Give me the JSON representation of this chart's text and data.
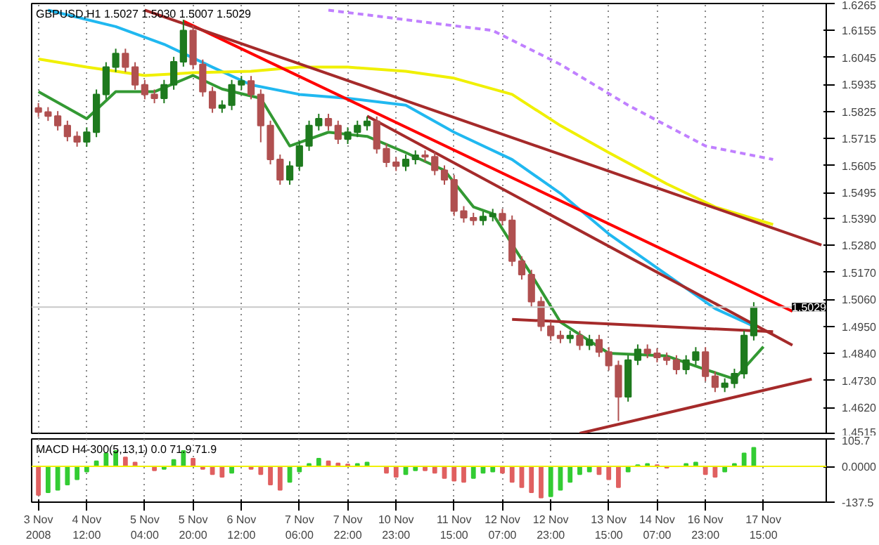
{
  "chart_data": [
    {
      "type": "candlestick",
      "title": "GBPUSD,H1 1.5027 1.5030 1.5007 1.5029",
      "categories": [
        "3 Nov 2008",
        null,
        null,
        null,
        null,
        "4 Nov 12:00",
        null,
        null,
        null,
        null,
        null,
        "5 Nov 04:00",
        null,
        null,
        null,
        null,
        "5 Nov 20:00",
        null,
        null,
        null,
        null,
        "6 Nov 12:00",
        null,
        null,
        null,
        null,
        null,
        "7 Nov 06:00",
        null,
        null,
        null,
        null,
        "7 Nov 22:00",
        null,
        null,
        null,
        null,
        "10 Nov 23:00",
        null,
        null,
        null,
        null,
        null,
        "11 Nov 15:00",
        null,
        null,
        null,
        null,
        "12 Nov 07:00",
        null,
        null,
        null,
        null,
        "12 Nov 23:00",
        null,
        null,
        null,
        null,
        null,
        "13 Nov 15:00",
        null,
        null,
        null,
        null,
        "14 Nov 07:00",
        null,
        null,
        null,
        null,
        "16 Nov 23:00",
        null,
        null,
        null,
        null,
        null,
        "17 Nov 15:00",
        null,
        null,
        null,
        null,
        null,
        null
      ],
      "ohlc": [
        [
          1.584,
          1.586,
          1.5803,
          1.5823
        ],
        [
          1.5823,
          1.5843,
          1.5787,
          1.5807
        ],
        [
          1.5807,
          1.5827,
          1.5748,
          1.5768
        ],
        [
          1.5768,
          1.5788,
          1.5704,
          1.5724
        ],
        [
          1.5724,
          1.5744,
          1.5682,
          1.5702
        ],
        [
          1.5702,
          1.5761,
          1.5682,
          1.5741
        ],
        [
          1.5741,
          1.5915,
          1.5721,
          1.5895
        ],
        [
          1.5895,
          1.6026,
          1.5875,
          1.6006
        ],
        [
          1.6006,
          1.6081,
          1.5986,
          1.6061
        ],
        [
          1.6061,
          1.6081,
          1.5986,
          1.6006
        ],
        [
          1.6006,
          1.6026,
          1.5914,
          1.5934
        ],
        [
          1.5934,
          1.5954,
          1.5875,
          1.5895
        ],
        [
          1.5895,
          1.5915,
          1.5859,
          1.5879
        ],
        [
          1.5879,
          1.5954,
          1.5859,
          1.5934
        ],
        [
          1.5934,
          1.6048,
          1.5914,
          1.6028
        ],
        [
          1.6028,
          1.6199,
          1.6008,
          1.6155
        ],
        [
          1.6155,
          1.6175,
          1.5997,
          1.6017
        ],
        [
          1.6017,
          1.6037,
          1.5886,
          1.5906
        ],
        [
          1.5906,
          1.5926,
          1.582,
          1.584
        ],
        [
          1.584,
          1.5871,
          1.582,
          1.5851
        ],
        [
          1.5851,
          1.5954,
          1.5831,
          1.5934
        ],
        [
          1.5934,
          1.597,
          1.5914,
          1.595
        ],
        [
          1.595,
          1.597,
          1.5875,
          1.5895
        ],
        [
          1.5895,
          1.5915,
          1.57,
          1.5768
        ],
        [
          1.5768,
          1.5788,
          1.561,
          1.563
        ],
        [
          1.563,
          1.565,
          1.5527,
          1.5547
        ],
        [
          1.5547,
          1.5623,
          1.5527,
          1.5603
        ],
        [
          1.5603,
          1.5705,
          1.5583,
          1.5685
        ],
        [
          1.5685,
          1.5788,
          1.5665,
          1.5768
        ],
        [
          1.5768,
          1.5816,
          1.5748,
          1.5796
        ],
        [
          1.5796,
          1.5816,
          1.5748,
          1.5768
        ],
        [
          1.5768,
          1.5788,
          1.5693,
          1.5713
        ],
        [
          1.5713,
          1.5761,
          1.5693,
          1.5741
        ],
        [
          1.5741,
          1.5788,
          1.5721,
          1.5768
        ],
        [
          1.5768,
          1.5805,
          1.5748,
          1.5785
        ],
        [
          1.5785,
          1.5805,
          1.5654,
          1.5674
        ],
        [
          1.5674,
          1.5694,
          1.5599,
          1.5619
        ],
        [
          1.5619,
          1.5639,
          1.5583,
          1.5603
        ],
        [
          1.5603,
          1.565,
          1.5583,
          1.563
        ],
        [
          1.563,
          1.5667,
          1.561,
          1.5647
        ],
        [
          1.5647,
          1.5667,
          1.5621,
          1.5641
        ],
        [
          1.5641,
          1.5661,
          1.5566,
          1.5586
        ],
        [
          1.5586,
          1.5606,
          1.5527,
          1.5547
        ],
        [
          1.5547,
          1.5567,
          1.54,
          1.542
        ],
        [
          1.542,
          1.544,
          1.5373,
          1.5393
        ],
        [
          1.5393,
          1.5413,
          1.5362,
          1.5382
        ],
        [
          1.5382,
          1.5418,
          1.5362,
          1.5398
        ],
        [
          1.5398,
          1.5429,
          1.5378,
          1.5409
        ],
        [
          1.5409,
          1.5429,
          1.5362,
          1.5382
        ],
        [
          1.5382,
          1.5402,
          1.5196,
          1.5216
        ],
        [
          1.5216,
          1.5236,
          1.5141,
          1.5161
        ],
        [
          1.5161,
          1.5181,
          1.5031,
          1.5051
        ],
        [
          1.5051,
          1.5071,
          1.4931,
          1.4951
        ],
        [
          1.4951,
          1.4971,
          1.4893,
          1.4913
        ],
        [
          1.4913,
          1.4933,
          1.4882,
          1.4902
        ],
        [
          1.4902,
          1.4933,
          1.4882,
          1.4913
        ],
        [
          1.4913,
          1.4933,
          1.4854,
          1.4874
        ],
        [
          1.4874,
          1.4916,
          1.4854,
          1.4896
        ],
        [
          1.4896,
          1.4916,
          1.4826,
          1.4846
        ],
        [
          1.4846,
          1.4866,
          1.4771,
          1.4791
        ],
        [
          1.4791,
          1.4811,
          1.4565,
          1.4664
        ],
        [
          1.4664,
          1.4833,
          1.4644,
          1.4813
        ],
        [
          1.4813,
          1.4877,
          1.4793,
          1.4857
        ],
        [
          1.4857,
          1.4877,
          1.4821,
          1.4841
        ],
        [
          1.4841,
          1.4861,
          1.4804,
          1.4824
        ],
        [
          1.4824,
          1.4844,
          1.4793,
          1.4813
        ],
        [
          1.4813,
          1.4833,
          1.4755,
          1.4775
        ],
        [
          1.4775,
          1.4833,
          1.4755,
          1.4813
        ],
        [
          1.4813,
          1.4866,
          1.4793,
          1.4846
        ],
        [
          1.4846,
          1.4866,
          1.4727,
          1.4747
        ],
        [
          1.4747,
          1.4767,
          1.4683,
          1.4703
        ],
        [
          1.4703,
          1.4739,
          1.4683,
          1.4719
        ],
        [
          1.4719,
          1.4778,
          1.4699,
          1.4758
        ],
        [
          1.4758,
          1.4933,
          1.4738,
          1.4913
        ],
        [
          1.4913,
          1.5049,
          1.4893,
          1.5029
        ],
        null,
        null,
        null,
        null,
        null,
        null,
        null
      ],
      "colors": [
        "#b05050",
        "#b05050",
        "#b05050",
        "#b05050",
        "#b05050",
        "#1e7a1e",
        "#1e7a1e",
        "#1e7a1e",
        "#1e7a1e",
        "#b05050",
        "#b05050",
        "#b05050",
        "#b05050",
        "#1e7a1e",
        "#1e7a1e",
        "#1e7a1e",
        "#b05050",
        "#b05050",
        "#b05050",
        "#1e7a1e",
        "#1e7a1e",
        "#1e7a1e",
        "#b05050",
        "#b05050",
        "#b05050",
        "#b05050",
        "#1e7a1e",
        "#1e7a1e",
        "#1e7a1e",
        "#1e7a1e",
        "#b05050",
        "#b05050",
        "#1e7a1e",
        "#1e7a1e",
        "#1e7a1e",
        "#b05050",
        "#b05050",
        "#b05050",
        "#1e7a1e",
        "#1e7a1e",
        "#b05050",
        "#b05050",
        "#b05050",
        "#b05050",
        "#b05050",
        "#b05050",
        "#1e7a1e",
        "#1e7a1e",
        "#b05050",
        "#b05050",
        "#b05050",
        "#b05050",
        "#b05050",
        "#b05050",
        "#b05050",
        "#1e7a1e",
        "#b05050",
        "#1e7a1e",
        "#b05050",
        "#b05050",
        "#b05050",
        "#1e7a1e",
        "#1e7a1e",
        "#b05050",
        "#b05050",
        "#b05050",
        "#b05050",
        "#1e7a1e",
        "#1e7a1e",
        "#b05050",
        "#b05050",
        "#1e7a1e",
        "#1e7a1e",
        "#1e7a1e",
        "#1e7a1e",
        null,
        null,
        null,
        null,
        null,
        null,
        null
      ],
      "series": [
        {
          "type": "line",
          "color": "#20b8f0",
          "values": [
            null,
            1.6238,
            null,
            null,
            null,
            null,
            null,
            null,
            1.6171,
            null,
            null,
            null,
            null,
            1.6099,
            null,
            null,
            null,
            null,
            1.6006,
            null,
            null,
            null,
            1.5934,
            null,
            null,
            null,
            null,
            1.5895,
            null,
            null,
            null,
            null,
            1.5879,
            null,
            null,
            null,
            null,
            null,
            1.5851,
            null,
            null,
            null,
            null,
            1.5741,
            null,
            null,
            null,
            null,
            null,
            1.563,
            null,
            null,
            null,
            null,
            1.5492,
            null,
            null,
            null,
            null,
            1.5327,
            null,
            null,
            null,
            null,
            null,
            1.5161,
            null,
            null,
            null,
            null,
            1.5023,
            null,
            null,
            null,
            1.4951,
            null,
            null,
            null,
            null,
            null,
            null,
            null
          ]
        },
        {
          "type": "line",
          "color": "#f0f000",
          "values": [
            1.6039,
            null,
            null,
            null,
            null,
            1.6006,
            null,
            null,
            null,
            null,
            null,
            1.5972,
            null,
            null,
            null,
            null,
            1.5983,
            null,
            null,
            null,
            null,
            null,
            1.5989,
            null,
            null,
            null,
            null,
            1.6006,
            null,
            null,
            null,
            null,
            1.6006,
            null,
            null,
            null,
            null,
            null,
            1.5989,
            null,
            null,
            null,
            null,
            1.5961,
            null,
            null,
            null,
            null,
            null,
            1.5895,
            null,
            null,
            null,
            null,
            1.5768,
            null,
            null,
            null,
            null,
            1.5658,
            null,
            null,
            null,
            null,
            null,
            1.5531,
            null,
            null,
            null,
            null,
            1.5437,
            null,
            null,
            null,
            null,
            null,
            1.5365,
            null,
            null,
            null,
            null,
            null
          ]
        },
        {
          "type": "line",
          "color": "#c080ff",
          "line_style": "dashed",
          "values": [
            null,
            null,
            null,
            null,
            null,
            null,
            null,
            null,
            null,
            null,
            null,
            null,
            null,
            null,
            null,
            null,
            null,
            null,
            null,
            null,
            null,
            null,
            null,
            null,
            null,
            null,
            null,
            null,
            null,
            null,
            1.6238,
            null,
            null,
            null,
            null,
            null,
            null,
            null,
            null,
            null,
            null,
            null,
            null,
            null,
            null,
            null,
            null,
            1.6155,
            null,
            null,
            null,
            null,
            null,
            null,
            1.6017,
            null,
            null,
            null,
            null,
            null,
            null,
            1.5851,
            null,
            null,
            null,
            null,
            null,
            null,
            null,
            1.5685,
            null,
            null,
            null,
            null,
            null,
            null,
            1.563,
            null,
            null,
            null,
            null,
            null
          ]
        },
        {
          "type": "line",
          "color": "#339933",
          "values": [
            1.5906,
            null,
            null,
            null,
            null,
            1.5796,
            null,
            null,
            1.5906,
            null,
            null,
            null,
            1.5906,
            null,
            null,
            null,
            1.5972,
            null,
            null,
            1.5917,
            null,
            null,
            null,
            1.5879,
            null,
            null,
            1.5685,
            null,
            null,
            null,
            1.5741,
            null,
            null,
            null,
            1.5724,
            null,
            null,
            null,
            1.5658,
            null,
            null,
            null,
            1.5586,
            null,
            null,
            1.5437,
            null,
            1.5409,
            null,
            null,
            null,
            1.5161,
            null,
            null,
            1.4968,
            null,
            null,
            null,
            null,
            1.4841,
            null,
            null,
            null,
            null,
            null,
            1.483,
            null,
            null,
            null,
            1.4775,
            null,
            null,
            1.4736,
            null,
            null,
            1.4868,
            null,
            null,
            null,
            null,
            null,
            null
          ]
        },
        {
          "type": "line",
          "color": "#ff0000",
          "values": [
            null,
            null,
            null,
            null,
            null,
            null,
            null,
            null,
            null,
            null,
            null,
            null,
            null,
            null,
            null,
            1.6193,
            null,
            null,
            null,
            null,
            null,
            null,
            null,
            null,
            null,
            null,
            null,
            null,
            null,
            null,
            null,
            null,
            null,
            null,
            null,
            null,
            null,
            null,
            null,
            null,
            null,
            null,
            null,
            null,
            null,
            null,
            null,
            null,
            null,
            null,
            null,
            null,
            null,
            null,
            null,
            null,
            null,
            null,
            null,
            null,
            null,
            null,
            null,
            null,
            null,
            null,
            null,
            null,
            null,
            null,
            null,
            null,
            null,
            null,
            null,
            null,
            null,
            null,
            1.5012,
            null,
            null,
            null
          ]
        },
        {
          "type": "line",
          "color": "#a52a2a",
          "values": [
            null,
            null,
            null,
            null,
            null,
            null,
            null,
            null,
            null,
            null,
            null,
            1.6238,
            null,
            null,
            null,
            null,
            null,
            null,
            null,
            null,
            null,
            null,
            null,
            null,
            null,
            null,
            null,
            null,
            null,
            null,
            null,
            null,
            null,
            null,
            null,
            null,
            null,
            null,
            null,
            null,
            null,
            null,
            null,
            null,
            null,
            null,
            null,
            null,
            null,
            null,
            null,
            null,
            null,
            null,
            null,
            null,
            null,
            null,
            null,
            null,
            null,
            null,
            null,
            null,
            null,
            null,
            null,
            null,
            null,
            null,
            null,
            null,
            null,
            null,
            null,
            null,
            null,
            null,
            null,
            null,
            null,
            1.5282
          ]
        },
        {
          "type": "line",
          "color": "#a52a2a",
          "values": [
            null,
            null,
            null,
            null,
            null,
            null,
            null,
            null,
            null,
            null,
            null,
            null,
            null,
            null,
            null,
            null,
            null,
            null,
            null,
            null,
            null,
            null,
            null,
            null,
            null,
            null,
            null,
            null,
            null,
            null,
            null,
            null,
            null,
            null,
            1.5807,
            null,
            null,
            null,
            null,
            null,
            null,
            null,
            null,
            null,
            null,
            null,
            null,
            null,
            null,
            null,
            null,
            null,
            null,
            null,
            null,
            null,
            null,
            null,
            null,
            null,
            null,
            null,
            null,
            null,
            null,
            null,
            null,
            null,
            null,
            null,
            null,
            null,
            null,
            null,
            null,
            null,
            null,
            null,
            1.4874,
            null,
            null,
            null
          ]
        },
        {
          "type": "line",
          "color": "#a52a2a",
          "values": [
            null,
            null,
            null,
            null,
            null,
            null,
            null,
            null,
            null,
            null,
            null,
            null,
            null,
            null,
            null,
            null,
            null,
            null,
            null,
            null,
            null,
            null,
            null,
            null,
            null,
            null,
            null,
            null,
            null,
            null,
            null,
            null,
            null,
            null,
            null,
            null,
            null,
            null,
            null,
            null,
            null,
            null,
            null,
            null,
            null,
            null,
            null,
            null,
            null,
            1.4979,
            null,
            null,
            null,
            null,
            null,
            null,
            null,
            null,
            null,
            null,
            null,
            null,
            null,
            null,
            null,
            null,
            null,
            null,
            null,
            null,
            null,
            null,
            null,
            null,
            null,
            null,
            1.4929,
            null,
            null,
            null,
            null,
            null
          ]
        },
        {
          "type": "line",
          "color": "#a52a2a",
          "values": [
            null,
            null,
            null,
            null,
            null,
            null,
            null,
            null,
            null,
            null,
            null,
            null,
            null,
            null,
            null,
            null,
            null,
            null,
            null,
            null,
            null,
            null,
            null,
            null,
            null,
            null,
            null,
            null,
            null,
            null,
            null,
            null,
            null,
            null,
            null,
            null,
            null,
            null,
            null,
            null,
            null,
            null,
            null,
            null,
            null,
            null,
            null,
            null,
            null,
            null,
            null,
            null,
            null,
            null,
            null,
            null,
            1.4515,
            null,
            null,
            null,
            null,
            null,
            null,
            null,
            null,
            null,
            null,
            null,
            null,
            null,
            null,
            null,
            null,
            null,
            null,
            null,
            null,
            null,
            null,
            null,
            1.4736,
            null
          ]
        }
      ],
      "ref_lines": [
        {
          "axis": "y",
          "value": 1.5029,
          "label": "1.5029",
          "color": "#c8c8c8"
        }
      ],
      "ylim": [
        1.4515,
        1.6265
      ],
      "yticks": [
        1.6265,
        1.6155,
        1.6045,
        1.5935,
        1.5825,
        1.5715,
        1.5605,
        1.5495,
        {
          "value": 1.539,
          "label": "1.5390"
        },
        {
          "value": 1.528,
          "label": "1.5280"
        },
        {
          "value": 1.517,
          "label": "1.5170"
        },
        {
          "value": 1.506,
          "label": "1.5060"
        },
        {
          "value": 1.495,
          "label": "1.4950"
        },
        {
          "value": 1.484,
          "label": "1.4840"
        },
        {
          "value": 1.473,
          "label": "1.4730"
        },
        {
          "value": 1.462,
          "label": "1.4620"
        },
        1.4515
      ],
      "grid": "x",
      "tick_labels": "y"
    },
    {
      "type": "bar",
      "title": "MACD H4-300(5,13,1) 0.0 71.9 71.9",
      "categories": [
        "3 Nov 2008",
        null,
        null,
        null,
        null,
        "4 Nov 12:00",
        null,
        null,
        null,
        null,
        null,
        "5 Nov 04:00",
        null,
        null,
        null,
        null,
        "5 Nov 20:00",
        null,
        null,
        null,
        null,
        "6 Nov 12:00",
        null,
        null,
        null,
        null,
        null,
        "7 Nov 06:00",
        null,
        null,
        null,
        null,
        "7 Nov 22:00",
        null,
        null,
        null,
        null,
        "10 Nov 23:00",
        null,
        null,
        null,
        null,
        null,
        "11 Nov 15:00",
        null,
        null,
        null,
        null,
        "12 Nov 07:00",
        null,
        null,
        null,
        null,
        "12 Nov 23:00",
        null,
        null,
        null,
        null,
        null,
        "13 Nov 15:00",
        null,
        null,
        null,
        null,
        "14 Nov 07:00",
        null,
        null,
        null,
        null,
        "16 Nov 23:00",
        null,
        null,
        null,
        null,
        null,
        "17 Nov 15:00",
        null,
        null,
        null,
        null,
        null,
        null
      ],
      "values": [
        -110,
        -100,
        -90,
        -70,
        -50,
        -20,
        20,
        50,
        60,
        35,
        15,
        0,
        -15,
        -10,
        25,
        60,
        30,
        -10,
        -30,
        -40,
        -25,
        0,
        -10,
        -30,
        -70,
        -90,
        -60,
        -20,
        10,
        30,
        20,
        12,
        8,
        10,
        15,
        0,
        -25,
        -40,
        -30,
        -15,
        -15,
        -25,
        -45,
        -55,
        -60,
        -45,
        -25,
        -20,
        -25,
        -60,
        -80,
        -100,
        -120,
        -115,
        -90,
        -60,
        -30,
        -20,
        -30,
        -50,
        -80,
        -20,
        5,
        10,
        5,
        -5,
        0,
        10,
        15,
        -30,
        -40,
        -20,
        10,
        50,
        72,
        null,
        null,
        null,
        null,
        null,
        null,
        null
      ],
      "colors": [
        "#e06060",
        "#33cc33",
        "#33cc33",
        "#33cc33",
        "#33cc33",
        "#33cc33",
        "#33cc33",
        "#33cc33",
        "#33cc33",
        "#e06060",
        "#e06060",
        "#e06060",
        "#e06060",
        "#33cc33",
        "#33cc33",
        "#33cc33",
        "#e06060",
        "#e06060",
        "#e06060",
        "#e06060",
        "#33cc33",
        "#33cc33",
        "#e06060",
        "#e06060",
        "#e06060",
        "#e06060",
        "#33cc33",
        "#33cc33",
        "#33cc33",
        "#33cc33",
        "#e06060",
        "#e06060",
        "#e06060",
        "#33cc33",
        "#33cc33",
        "#e06060",
        "#e06060",
        "#e06060",
        "#33cc33",
        "#33cc33",
        "#e06060",
        "#e06060",
        "#e06060",
        "#e06060",
        "#e06060",
        "#33cc33",
        "#33cc33",
        "#33cc33",
        "#e06060",
        "#e06060",
        "#e06060",
        "#e06060",
        "#e06060",
        "#33cc33",
        "#33cc33",
        "#33cc33",
        "#33cc33",
        "#33cc33",
        "#e06060",
        "#e06060",
        "#e06060",
        "#33cc33",
        "#33cc33",
        "#33cc33",
        "#e06060",
        "#e06060",
        "#33cc33",
        "#33cc33",
        "#33cc33",
        "#e06060",
        "#e06060",
        "#33cc33",
        "#33cc33",
        "#33cc33",
        "#33cc33",
        null,
        null,
        null,
        null,
        null,
        null,
        null
      ],
      "ref_lines": [
        {
          "axis": "y",
          "value": 0,
          "color": "#f0f000"
        }
      ],
      "ylim": [
        -137.5,
        105.7
      ],
      "yticks": [
        105.7,
        {
          "value": 0,
          "label": "0.0000"
        },
        -137.5
      ],
      "grid": "x"
    }
  ]
}
